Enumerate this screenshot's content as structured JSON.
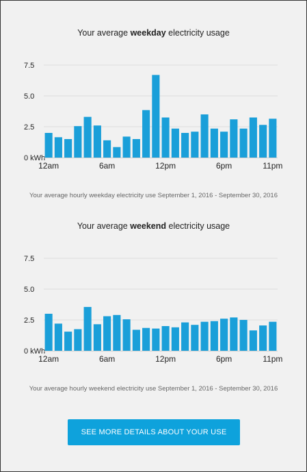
{
  "colors": {
    "bar": "#1a9fd9",
    "grid": "#dddddd",
    "button": "#0ea2dc"
  },
  "weekday": {
    "title_pre": "Your average ",
    "title_bold": "weekday",
    "title_post": " electricity usage",
    "caption": "Your average hourly weekday electricity use September 1, 2016 - September 30, 2016"
  },
  "weekend": {
    "title_pre": "Your average ",
    "title_bold": "weekend",
    "title_post": " electricity usage",
    "caption": "Your average hourly weekend electricity use September 1, 2016 - September 30, 2016"
  },
  "button": {
    "label": "SEE MORE DETAILS ABOUT YOUR USE"
  },
  "chart_data": [
    {
      "type": "bar",
      "title": "Your average weekday electricity usage",
      "ylabel": "",
      "xlabel": "",
      "ylim": [
        0,
        7.5
      ],
      "yticks": [
        {
          "value": 0,
          "label": "0 kWh"
        },
        {
          "value": 2.5,
          "label": "2.5"
        },
        {
          "value": 5.0,
          "label": "5.0"
        },
        {
          "value": 7.5,
          "label": "7.5"
        }
      ],
      "xticks": [
        {
          "index": 0,
          "label": "12am"
        },
        {
          "index": 6,
          "label": "6am"
        },
        {
          "index": 12,
          "label": "12pm"
        },
        {
          "index": 18,
          "label": "6pm"
        },
        {
          "index": 23,
          "label": "11pm"
        }
      ],
      "grid": true,
      "values": [
        2.0,
        1.65,
        1.5,
        2.55,
        3.3,
        2.6,
        1.4,
        0.85,
        1.7,
        1.5,
        3.85,
        6.7,
        3.25,
        2.35,
        2.0,
        2.1,
        3.5,
        2.35,
        2.1,
        3.1,
        2.35,
        3.25,
        2.65,
        3.15
      ]
    },
    {
      "type": "bar",
      "title": "Your average weekend electricity usage",
      "ylabel": "",
      "xlabel": "",
      "ylim": [
        0,
        7.5
      ],
      "yticks": [
        {
          "value": 0,
          "label": "0 kWh"
        },
        {
          "value": 2.5,
          "label": "2.5"
        },
        {
          "value": 5.0,
          "label": "5.0"
        },
        {
          "value": 7.5,
          "label": "7.5"
        }
      ],
      "xticks": [
        {
          "index": 0,
          "label": "12am"
        },
        {
          "index": 6,
          "label": "6am"
        },
        {
          "index": 12,
          "label": "12pm"
        },
        {
          "index": 18,
          "label": "6pm"
        },
        {
          "index": 23,
          "label": "11pm"
        }
      ],
      "grid": true,
      "values": [
        3.0,
        2.2,
        1.55,
        1.75,
        3.55,
        2.15,
        2.8,
        2.9,
        2.55,
        1.7,
        1.85,
        1.8,
        2.0,
        1.9,
        2.3,
        2.1,
        2.35,
        2.4,
        2.6,
        2.7,
        2.5,
        1.65,
        2.05,
        2.35
      ]
    }
  ]
}
